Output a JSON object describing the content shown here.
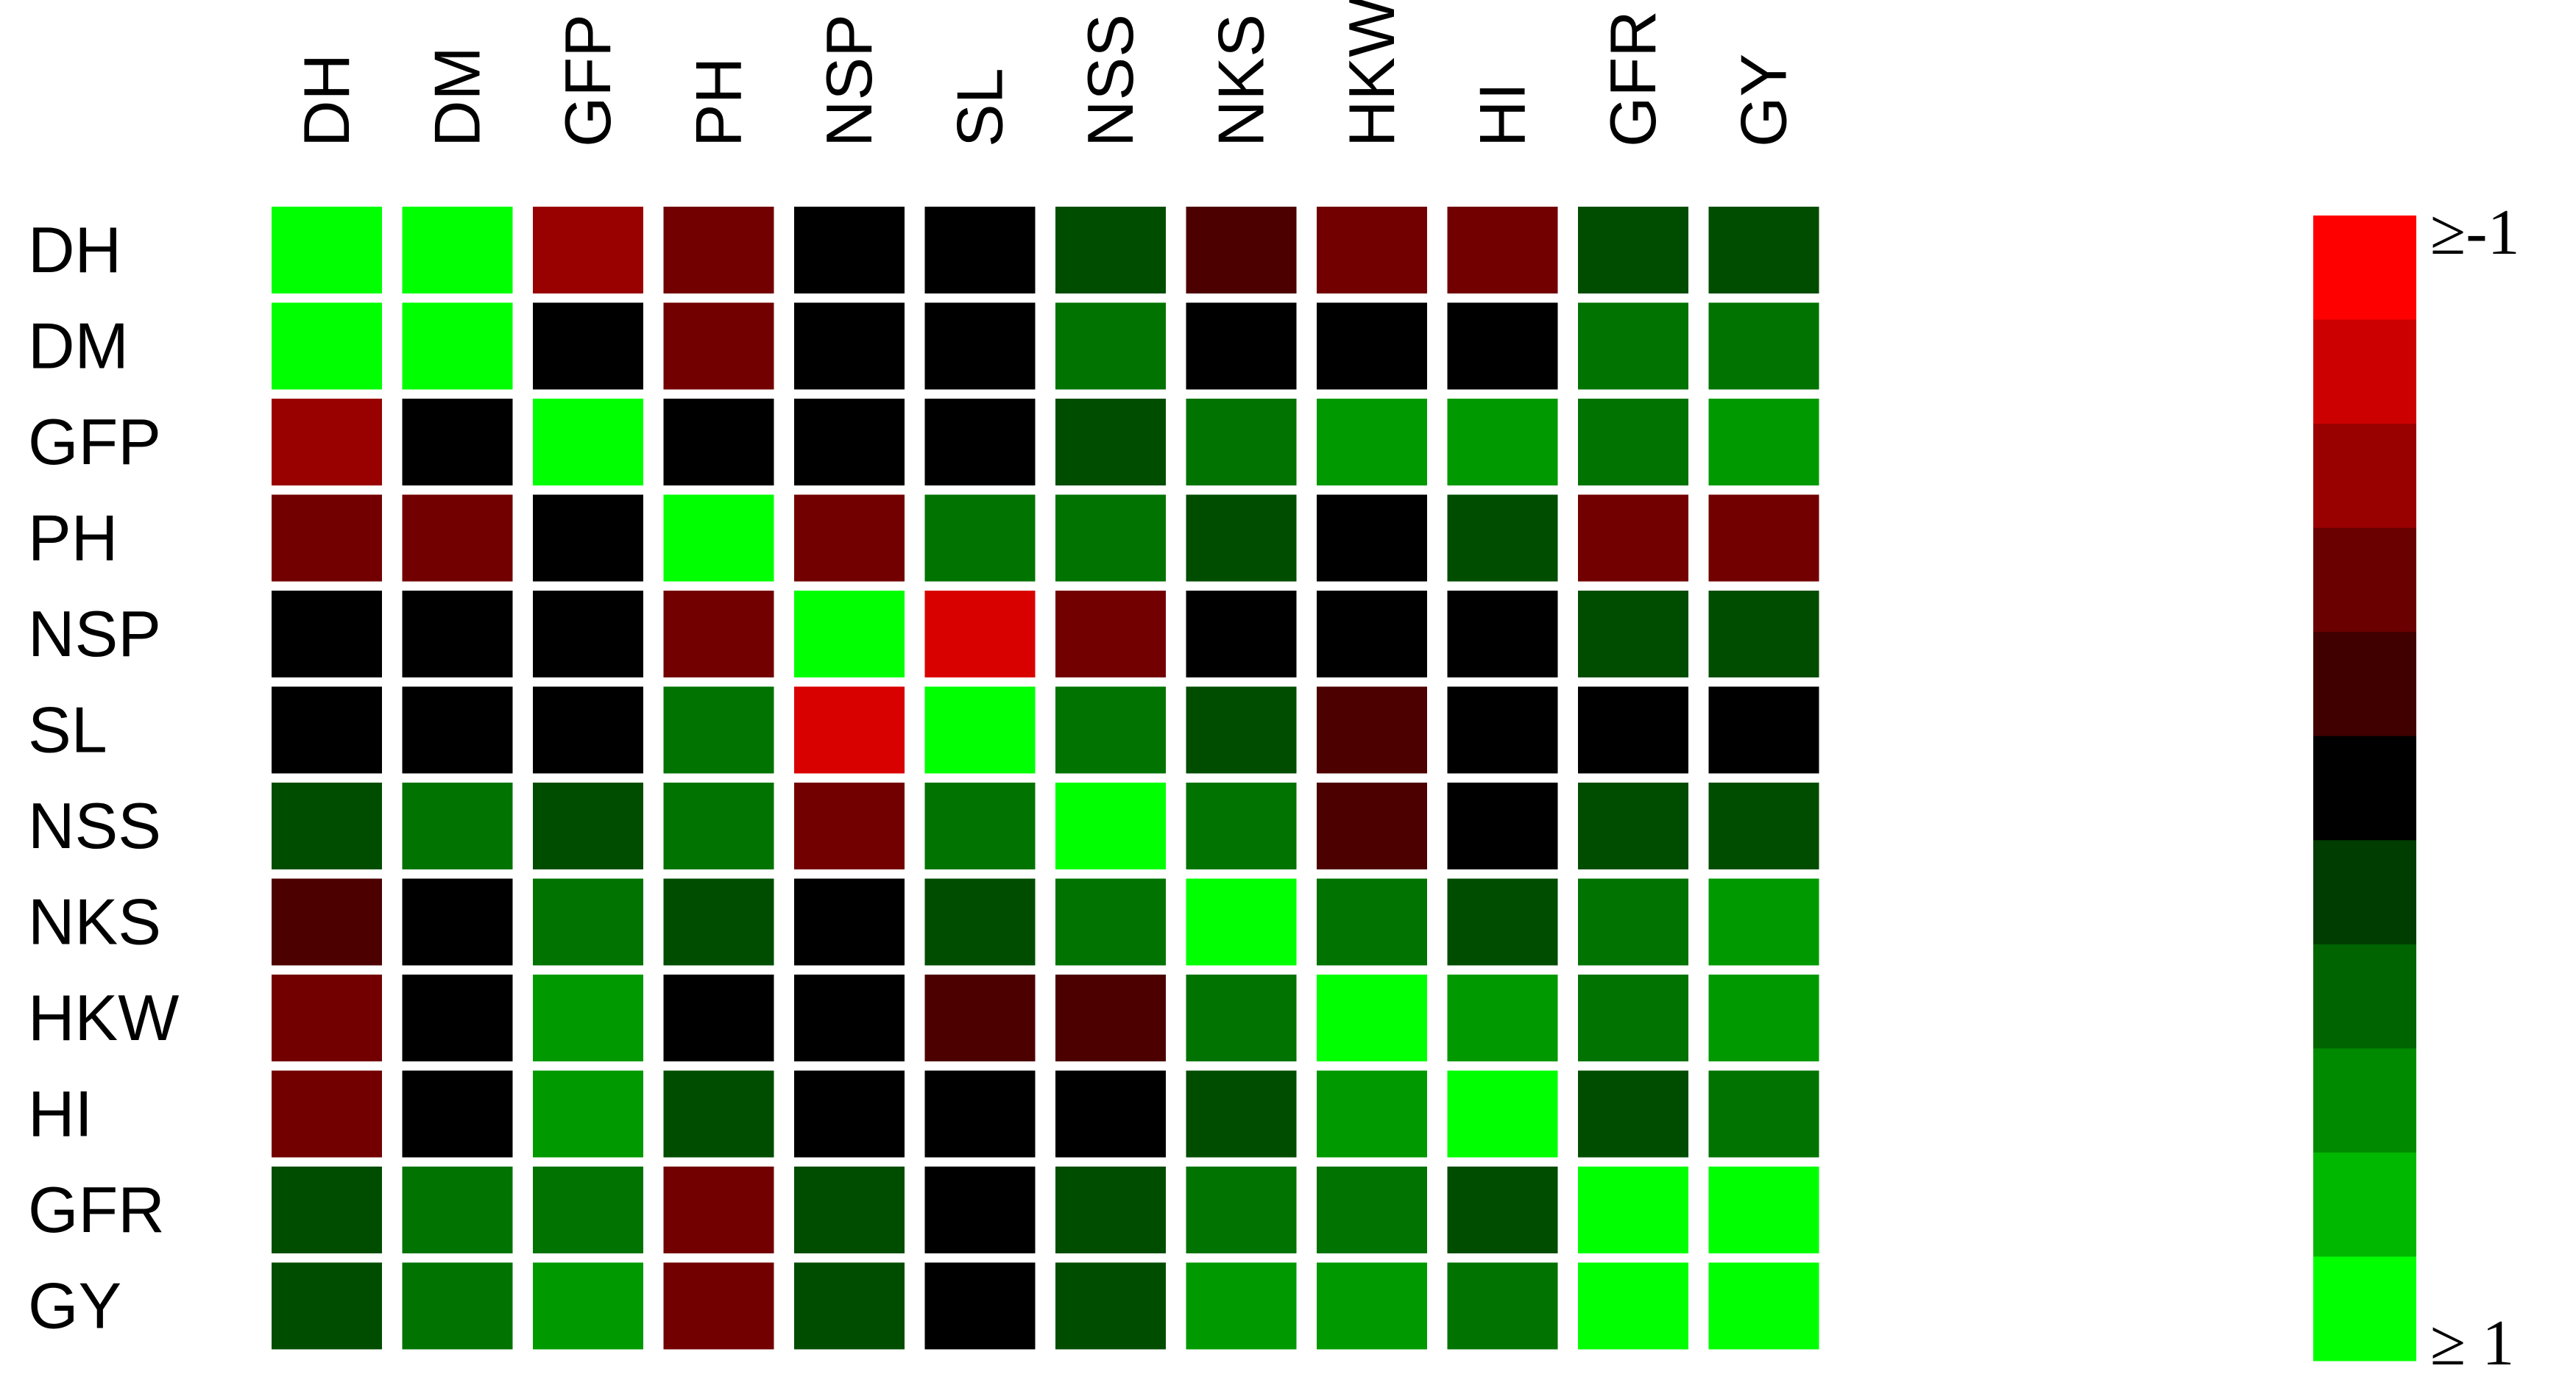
{
  "chart_data": {
    "type": "heatmap",
    "title": "",
    "xlabel": "",
    "ylabel": "",
    "columns": [
      "DH",
      "DM",
      "GFP",
      "PH",
      "NSP",
      "SL",
      "NSS",
      "NKS",
      "HKW",
      "HI",
      "GFR",
      "GY"
    ],
    "rows": [
      "DH",
      "DM",
      "GFP",
      "PH",
      "NSP",
      "SL",
      "NSS",
      "NKS",
      "HKW",
      "HI",
      "GFR",
      "GY"
    ],
    "value_range": [
      -1,
      1
    ],
    "values": [
      [
        1.0,
        1.0,
        -0.6,
        -0.45,
        0.0,
        0.0,
        0.3,
        -0.3,
        -0.45,
        -0.45,
        0.3,
        0.3
      ],
      [
        1.0,
        1.0,
        0.0,
        -0.45,
        0.0,
        0.0,
        0.45,
        0.0,
        0.0,
        0.0,
        0.45,
        0.45
      ],
      [
        -0.6,
        0.0,
        1.0,
        0.0,
        0.0,
        0.0,
        0.3,
        0.45,
        0.6,
        0.6,
        0.45,
        0.6
      ],
      [
        -0.45,
        -0.45,
        0.0,
        1.0,
        -0.45,
        0.45,
        0.45,
        0.3,
        0.0,
        0.3,
        -0.45,
        -0.45
      ],
      [
        0.0,
        0.0,
        0.0,
        -0.45,
        1.0,
        -0.85,
        -0.45,
        0.0,
        0.0,
        0.0,
        0.3,
        0.3
      ],
      [
        0.0,
        0.0,
        0.0,
        0.45,
        -0.85,
        1.0,
        0.45,
        0.3,
        -0.3,
        0.0,
        0.0,
        0.0
      ],
      [
        0.3,
        0.45,
        0.3,
        0.45,
        -0.45,
        0.45,
        1.0,
        0.45,
        -0.3,
        0.0,
        0.3,
        0.3
      ],
      [
        -0.3,
        0.0,
        0.45,
        0.3,
        0.0,
        0.3,
        0.45,
        1.0,
        0.45,
        0.3,
        0.45,
        0.6
      ],
      [
        -0.45,
        0.0,
        0.6,
        0.0,
        0.0,
        -0.3,
        -0.3,
        0.45,
        1.0,
        0.6,
        0.45,
        0.6
      ],
      [
        -0.45,
        0.0,
        0.6,
        0.3,
        0.0,
        0.0,
        0.0,
        0.3,
        0.6,
        1.0,
        0.3,
        0.45
      ],
      [
        0.3,
        0.45,
        0.45,
        -0.45,
        0.3,
        0.0,
        0.3,
        0.45,
        0.45,
        0.3,
        1.0,
        1.0
      ],
      [
        0.3,
        0.45,
        0.6,
        -0.45,
        0.3,
        0.0,
        0.3,
        0.6,
        0.6,
        0.45,
        1.0,
        1.0
      ]
    ],
    "colorbar": {
      "top_label": "≥-1",
      "bottom_label": "≥ 1",
      "stops": [
        "#ff0000",
        "#cc0000",
        "#990000",
        "#6a0000",
        "#400000",
        "#000000",
        "#003d00",
        "#006400",
        "#008a00",
        "#00b800",
        "#00ff00"
      ]
    },
    "colors": {
      "negative_max": "#ff0000",
      "zero": "#000000",
      "positive_max": "#00ff00"
    },
    "grid": false,
    "legend_position": "right"
  }
}
